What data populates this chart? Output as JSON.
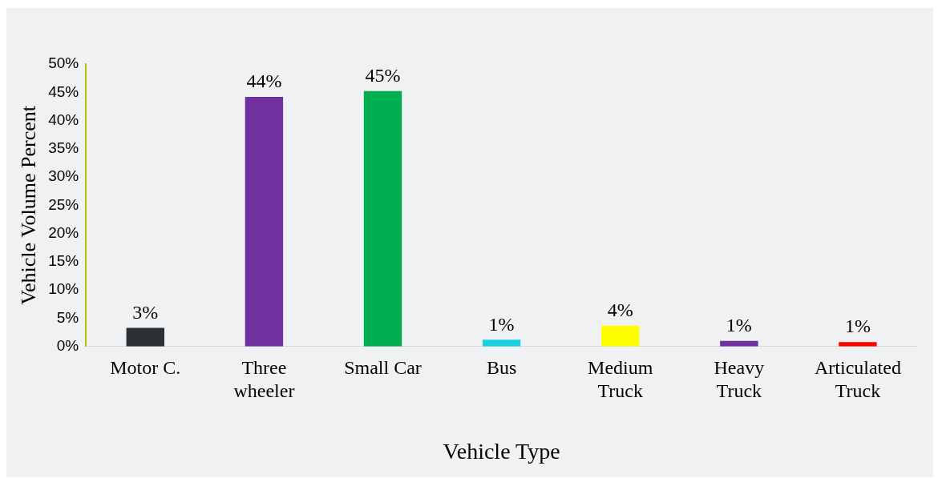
{
  "chart_data": {
    "type": "bar",
    "xlabel": "Vehicle Type",
    "ylabel": "Vehicle Volume Percent",
    "categories": [
      "Motor C.",
      "Three\nwheeler",
      "Small Car",
      "Bus",
      "Medium\nTruck",
      "Heavy\nTruck",
      "Articulated\nTruck"
    ],
    "values": [
      3.3,
      44.2,
      45.2,
      1.2,
      3.7,
      1.0,
      0.8
    ],
    "colors": [
      "#2b3035",
      "#7030a0",
      "#00b050",
      "#1ccfe0",
      "#ffff00",
      "#7030a0",
      "#ff0000"
    ],
    "value_labels": [
      "3%",
      "44%",
      "45%",
      "1%",
      "4%",
      "1%",
      "1%"
    ],
    "ylim": [
      0,
      50
    ],
    "yticks": [
      {
        "value": 0,
        "label": "0%"
      },
      {
        "value": 5,
        "label": "5%"
      },
      {
        "value": 10,
        "label": "10%"
      },
      {
        "value": 15,
        "label": "15%"
      },
      {
        "value": 20,
        "label": "20%"
      },
      {
        "value": 25,
        "label": "25%"
      },
      {
        "value": 30,
        "label": "30%"
      },
      {
        "value": 35,
        "label": "35%"
      },
      {
        "value": 40,
        "label": "40%"
      },
      {
        "value": 45,
        "label": "45%"
      },
      {
        "value": 50,
        "label": "50%"
      }
    ],
    "grid": false,
    "legend": false
  }
}
